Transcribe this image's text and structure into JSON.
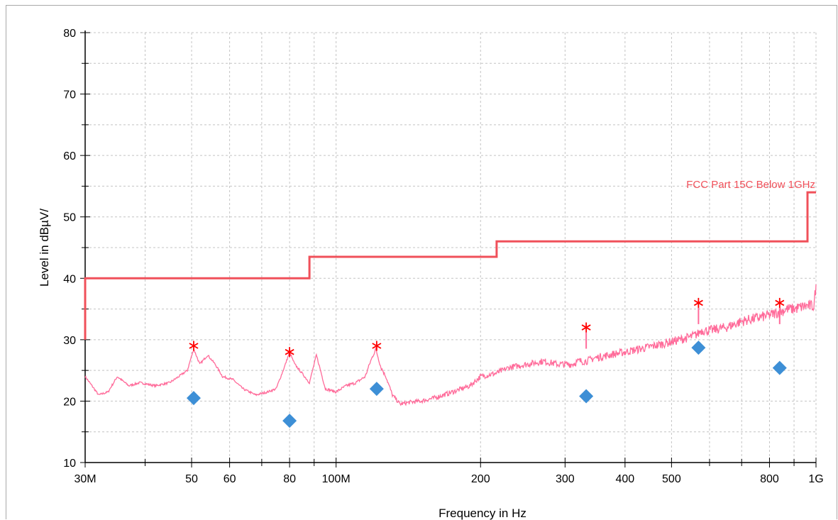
{
  "chart_data": {
    "type": "line",
    "title": "",
    "xlabel": "Frequency in Hz",
    "ylabel": "Level in dBµV/",
    "x_scale": "log",
    "xlim": [
      30000000,
      1000000000
    ],
    "ylim": [
      10,
      80
    ],
    "grid": true,
    "x_ticks": [
      {
        "value": 30000000,
        "label": "30M"
      },
      {
        "value": 50000000,
        "label": "50"
      },
      {
        "value": 60000000,
        "label": "60"
      },
      {
        "value": 80000000,
        "label": "80"
      },
      {
        "value": 100000000,
        "label": "100M"
      },
      {
        "value": 200000000,
        "label": "200"
      },
      {
        "value": 300000000,
        "label": "300"
      },
      {
        "value": 400000000,
        "label": "400"
      },
      {
        "value": 500000000,
        "label": "500"
      },
      {
        "value": 800000000,
        "label": "800"
      },
      {
        "value": 1000000000,
        "label": "1G"
      }
    ],
    "x_minor_ticks": [
      40000000,
      70000000,
      90000000,
      600000000,
      700000000,
      900000000
    ],
    "y_ticks": [
      {
        "value": 10,
        "label": "10"
      },
      {
        "value": 20,
        "label": "20"
      },
      {
        "value": 30,
        "label": "30"
      },
      {
        "value": 40,
        "label": "40"
      },
      {
        "value": 50,
        "label": "50"
      },
      {
        "value": 60,
        "label": "60"
      },
      {
        "value": 70,
        "label": "70"
      },
      {
        "value": 80,
        "label": "80"
      }
    ],
    "y_minor_ticks": [
      15,
      25,
      35,
      45,
      55,
      65,
      75
    ],
    "series": [
      {
        "name": "FCC Part 15C Below  1GHz",
        "role": "limit",
        "color": "#f0505a",
        "x": [
          30000000,
          30000000,
          88000000,
          88000000,
          216000000,
          216000000,
          960000000,
          960000000,
          1000000000
        ],
        "y": [
          30,
          40,
          40,
          43.5,
          43.5,
          46,
          46,
          54,
          54
        ]
      },
      {
        "role": "trace",
        "color": "#ff6b9a",
        "x": [
          30000000,
          31000000,
          32000000,
          33500000,
          35000000,
          37000000,
          39000000,
          42000000,
          45000000,
          47000000,
          49000000,
          50500000,
          52000000,
          54000000,
          56000000,
          58000000,
          61000000,
          64000000,
          68000000,
          72000000,
          75000000,
          78000000,
          80000000,
          82000000,
          85000000,
          88000000,
          91000000,
          95000000,
          100000000,
          105000000,
          110000000,
          115000000,
          118000000,
          121000000,
          124000000,
          127000000,
          131000000,
          136000000,
          142000000,
          150000000,
          160000000,
          175000000,
          190000000,
          200000000,
          215000000,
          230000000,
          250000000,
          270000000,
          290000000,
          310000000,
          320000000,
          328000000,
          332000000,
          345000000,
          370000000,
          400000000,
          430000000,
          460000000,
          490000000,
          520000000,
          550000000,
          569000000,
          575000000,
          600000000,
          650000000,
          700000000,
          750000000,
          800000000,
          840000000,
          870000000,
          900000000,
          950000000,
          990000000,
          1000000000
        ],
        "y": [
          24,
          22.5,
          21,
          21.5,
          24,
          22.5,
          23,
          22.5,
          23,
          24,
          25,
          28.5,
          26,
          27.5,
          26,
          24,
          23.5,
          22,
          21,
          21.5,
          22,
          25.5,
          28,
          26,
          24.5,
          23,
          27.5,
          22,
          21.5,
          22.5,
          23,
          24,
          26.5,
          28.5,
          25.5,
          24,
          21,
          19.5,
          19.8,
          20,
          20.5,
          21.5,
          22.5,
          24,
          24.5,
          25.5,
          26,
          26.5,
          26,
          26,
          26.5,
          26.5,
          26.5,
          27,
          27.5,
          28,
          28.5,
          29,
          29.5,
          30,
          30.5,
          31,
          31.5,
          31.5,
          32,
          33,
          33.5,
          34,
          34.5,
          35,
          35,
          35.5,
          35.5,
          39
        ]
      },
      {
        "role": "peaks",
        "marker": "asterisk",
        "color": "#ff0000",
        "x": [
          50500000,
          80000000,
          121500000,
          332000000,
          569000000,
          840000000
        ],
        "y": [
          29,
          28,
          29,
          32,
          36,
          36
        ]
      },
      {
        "role": "final",
        "marker": "diamond",
        "color": "#3d8fd6",
        "x": [
          50500000,
          80000000,
          121500000,
          332000000,
          569000000,
          840000000
        ],
        "y": [
          20.5,
          16.8,
          22,
          20.8,
          28.7,
          25.4
        ]
      }
    ]
  }
}
